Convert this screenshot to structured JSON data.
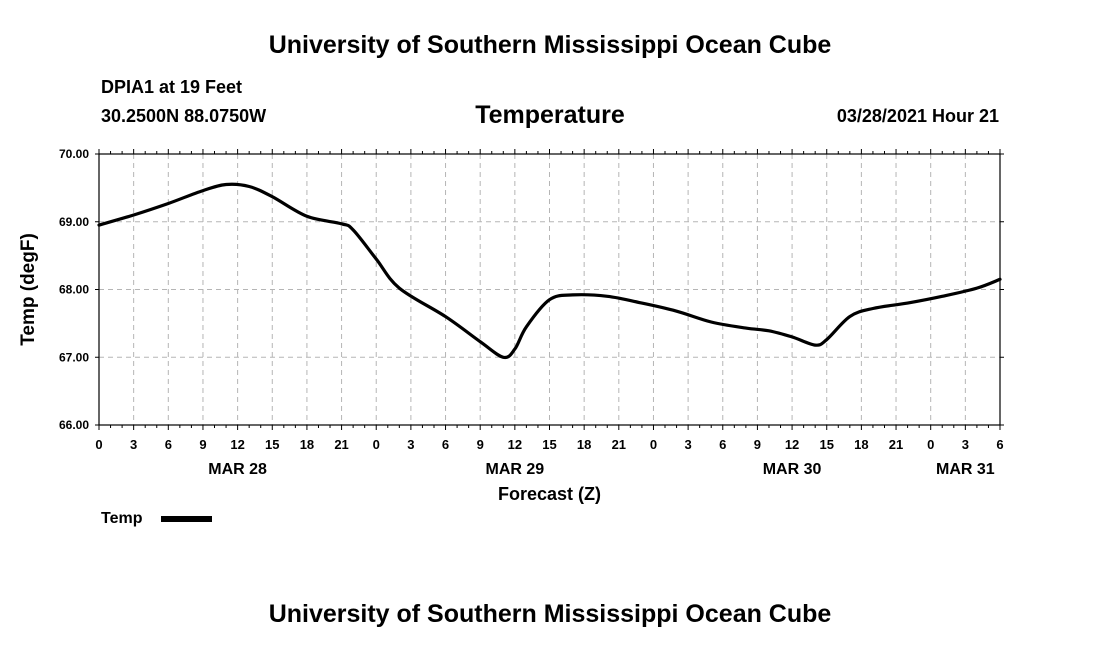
{
  "header": {
    "title": "University of Southern Mississippi Ocean Cube",
    "station": "DPIA1 at 19 Feet",
    "coords": "30.2500N  88.0750W",
    "datetime": "03/28/2021 Hour 21"
  },
  "footer": {
    "title": "University of Southern Mississippi Ocean Cube"
  },
  "chart_data": {
    "type": "line",
    "title": "Temperature",
    "xlabel": "Forecast (Z)",
    "ylabel": "Temp (degF)",
    "ylim": [
      66.0,
      70.0
    ],
    "xlim": [
      0,
      78
    ],
    "x_unit": "hours since MAR 28 00Z",
    "yticks": [
      "66.00",
      "67.00",
      "68.00",
      "69.00",
      "70.00"
    ],
    "xticks": [
      "0",
      "3",
      "6",
      "9",
      "12",
      "15",
      "18",
      "21",
      "0",
      "3",
      "6",
      "9",
      "12",
      "15",
      "18",
      "21",
      "0",
      "3",
      "6",
      "9",
      "12",
      "15",
      "18",
      "21",
      "0",
      "3",
      "6"
    ],
    "date_labels": [
      {
        "label": "MAR 28",
        "hour": 12
      },
      {
        "label": "MAR 29",
        "hour": 36
      },
      {
        "label": "MAR 30",
        "hour": 60
      },
      {
        "label": "MAR 31",
        "hour": 75
      }
    ],
    "grid": true,
    "legend": {
      "position": "bottom-left",
      "label": "Temp"
    },
    "series": [
      {
        "name": "Temp",
        "color": "#000000",
        "x": [
          0,
          3,
          6,
          9,
          11,
          13,
          15,
          18,
          21,
          22,
          24,
          26,
          30,
          33,
          35,
          36,
          37,
          39,
          41,
          44,
          47,
          50,
          53,
          56,
          58,
          60,
          62,
          63,
          65,
          67,
          70,
          73,
          76,
          78
        ],
        "values": [
          68.95,
          69.1,
          69.27,
          69.46,
          69.55,
          69.52,
          69.37,
          69.08,
          68.97,
          68.88,
          68.45,
          68.02,
          67.6,
          67.23,
          67.0,
          67.12,
          67.45,
          67.85,
          67.92,
          67.9,
          67.8,
          67.68,
          67.52,
          67.43,
          67.39,
          67.3,
          67.18,
          67.26,
          67.6,
          67.72,
          67.8,
          67.9,
          68.02,
          68.15
        ]
      }
    ]
  }
}
